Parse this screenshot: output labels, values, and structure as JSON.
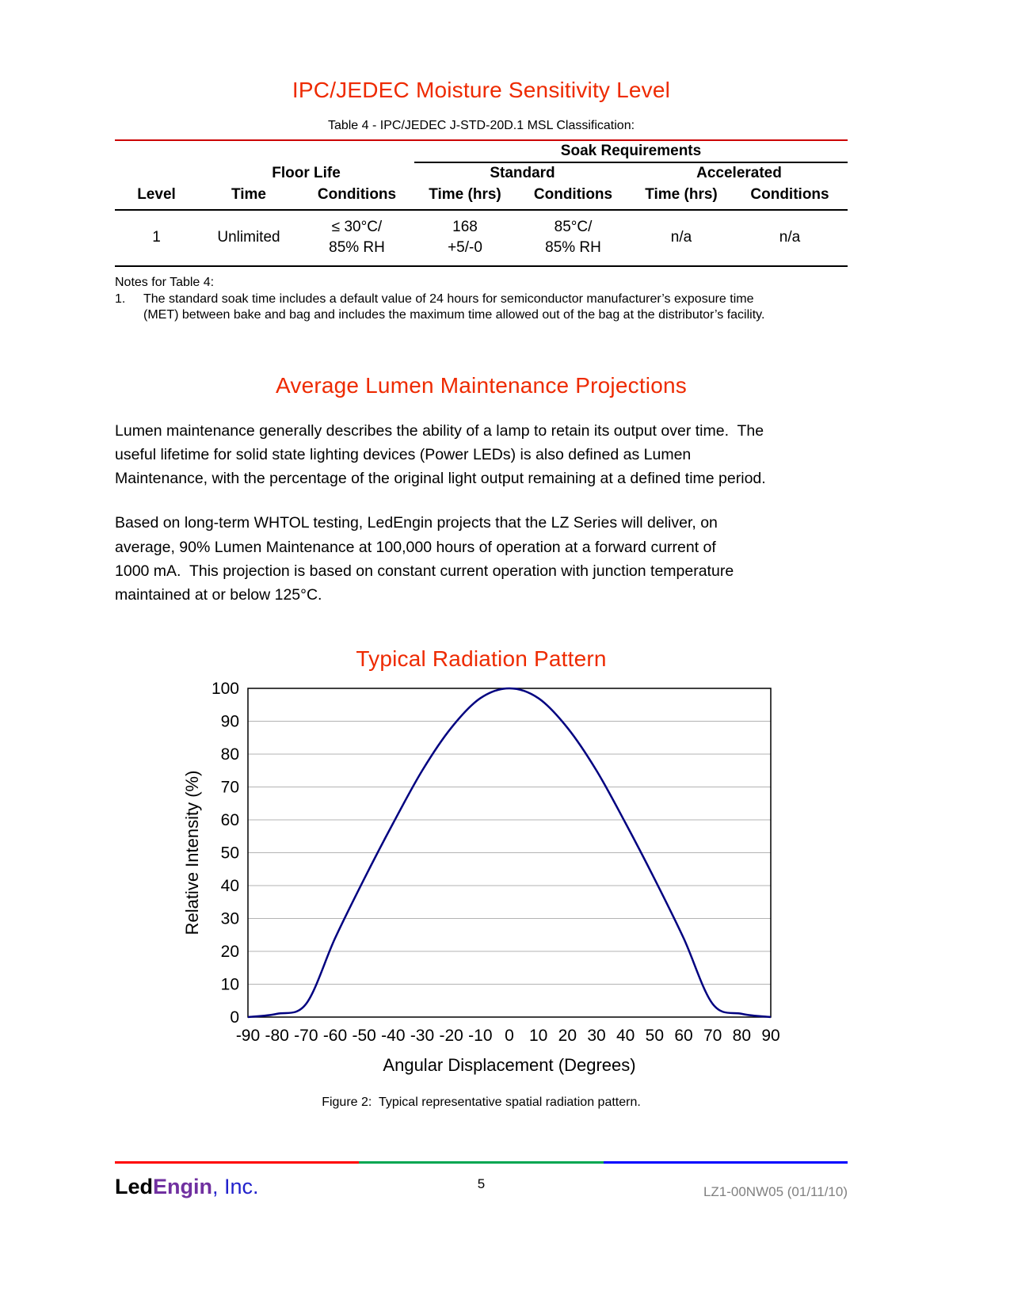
{
  "colors": {
    "heading_red": "#EE2A00",
    "table_rule_red": "#CC0000",
    "curve_navy": "#000080",
    "grid_gray": "#B3B3B3",
    "footer_rule": [
      "#FF0000",
      "#00A651",
      "#0000FF"
    ],
    "logo_engin_purple": "#7030A0",
    "logo_inc_blue": "#2222CC",
    "doc_ref_gray": "#808080"
  },
  "msl": {
    "title": "IPC/JEDEC Moisture Sensitivity Level",
    "table_caption": "Table 4 - IPC/JEDEC J-STD-20D.1 MSL Classification:",
    "table": {
      "soak_header": "Soak Requirements",
      "floor_life_header": "Floor Life",
      "standard_header": "Standard",
      "accelerated_header": "Accelerated",
      "column_headers": [
        "Level",
        "Time",
        "Conditions",
        "Time (hrs)",
        "Conditions",
        "Time (hrs)",
        "Conditions"
      ],
      "row": {
        "level": "1",
        "floor_time": "Unlimited",
        "floor_cond_line1": "≤ 30°C/",
        "floor_cond_line2": "85% RH",
        "std_time_line1": "168",
        "std_time_line2": "+5/-0",
        "std_cond_line1": "85°C/",
        "std_cond_line2": "85% RH",
        "acc_time": "n/a",
        "acc_cond": "n/a"
      }
    },
    "notes_title": "Notes for Table 4:",
    "note1_num": "1.",
    "note1_text": "The standard soak time includes a default value of 24 hours for semiconductor manufacturer’s exposure time\n(MET) between bake and bag and includes the maximum time allowed out of the bag at the distributor’s facility."
  },
  "lumen": {
    "title": "Average Lumen Maintenance Projections",
    "para1": "Lumen maintenance generally describes the ability of a lamp to retain its output over time.  The\nuseful lifetime for solid state lighting devices (Power LEDs) is also defined as Lumen\nMaintenance, with the percentage of the original light output remaining at a defined time period.",
    "para2": "Based on long-term WHTOL testing, LedEngin projects that the LZ Series will deliver, on\naverage, 90% Lumen Maintenance at 100,000 hours of operation at a forward current of\n1000 mA.  This projection is based on constant current operation with junction temperature\nmaintained at or below 125°C."
  },
  "radiation": {
    "title": "Typical Radiation Pattern",
    "figure_caption": "Figure 2:  Typical representative spatial radiation pattern."
  },
  "chart_data": {
    "type": "line",
    "title": "Typical Radiation Pattern",
    "xlabel": "Angular Displacement (Degrees)",
    "ylabel": "Relative Intensity (%)",
    "x": [
      -90,
      -80,
      -70,
      -60,
      -50,
      -40,
      -30,
      -20,
      -10,
      0,
      10,
      20,
      30,
      40,
      50,
      60,
      70,
      80,
      90
    ],
    "values": [
      0,
      1,
      4,
      24,
      42,
      59,
      75,
      88,
      97,
      100,
      97,
      88,
      75,
      59,
      42,
      24,
      4,
      1,
      0
    ],
    "xlim": [
      -90,
      90
    ],
    "ylim": [
      0,
      100
    ],
    "x_tick_step": 10,
    "y_tick_step": 10,
    "grid": "horizontal",
    "legend": "none",
    "line_color": "#000080"
  },
  "footer": {
    "logo_led": "Led",
    "logo_engin": "Engin",
    "logo_inc": ", Inc.",
    "page_number": "5",
    "doc_ref": "LZ1-00NW05 (01/11/10)"
  }
}
